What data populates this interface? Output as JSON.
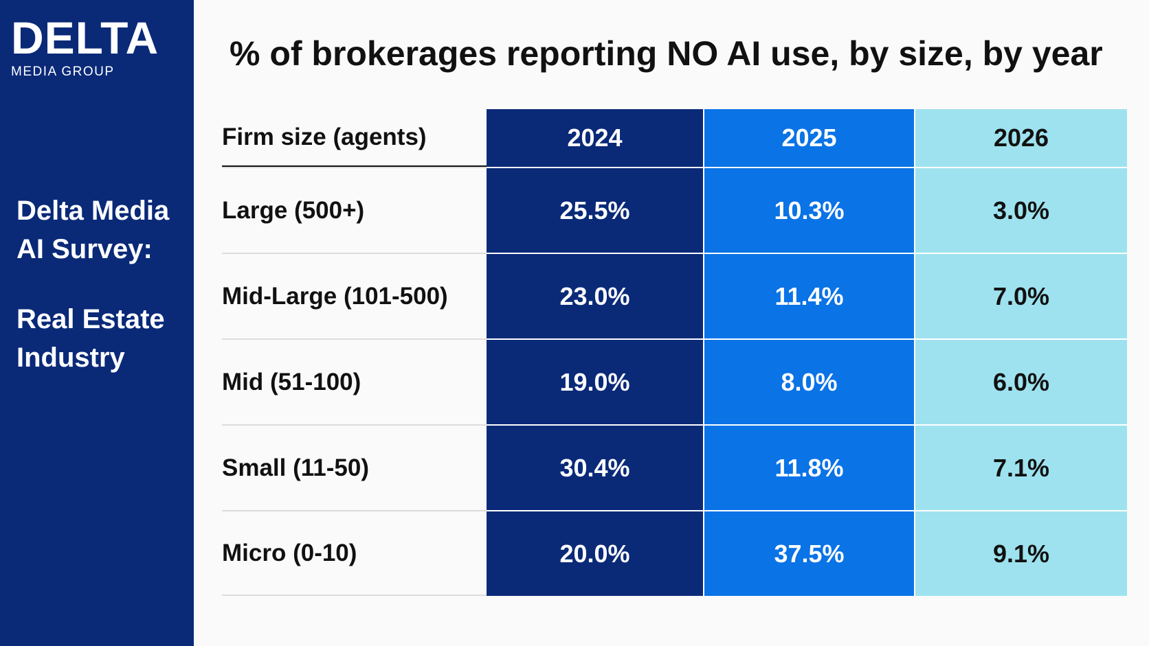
{
  "brand": {
    "name": "DELTA",
    "subtitle": "MEDIA GROUP",
    "colors": {
      "navy": "#0a2a78",
      "blue": "#0a73e6",
      "light": "#9ee2ef"
    }
  },
  "sidebar": {
    "line1": "Delta Media",
    "line2": "AI Survey:",
    "line3": "Real Estate",
    "line4": "Industry"
  },
  "chart_data": {
    "type": "table",
    "title": "% of brokerages reporting NO AI use, by size, by year",
    "row_header": "Firm size (agents)",
    "columns": [
      "2024",
      "2025",
      "2026"
    ],
    "rows": [
      {
        "label": "Large (500+)",
        "values": [
          "25.5%",
          "10.3%",
          "3.0%"
        ]
      },
      {
        "label": "Mid-Large (101-500)",
        "values": [
          "23.0%",
          "11.4%",
          "7.0%"
        ]
      },
      {
        "label": "Mid (51-100)",
        "values": [
          "19.0%",
          "8.0%",
          "6.0%"
        ]
      },
      {
        "label": "Small (11-50)",
        "values": [
          "30.4%",
          "11.8%",
          "7.1%"
        ]
      },
      {
        "label": "Micro (0-10)",
        "values": [
          "20.0%",
          "37.5%",
          "9.1%"
        ]
      }
    ]
  }
}
